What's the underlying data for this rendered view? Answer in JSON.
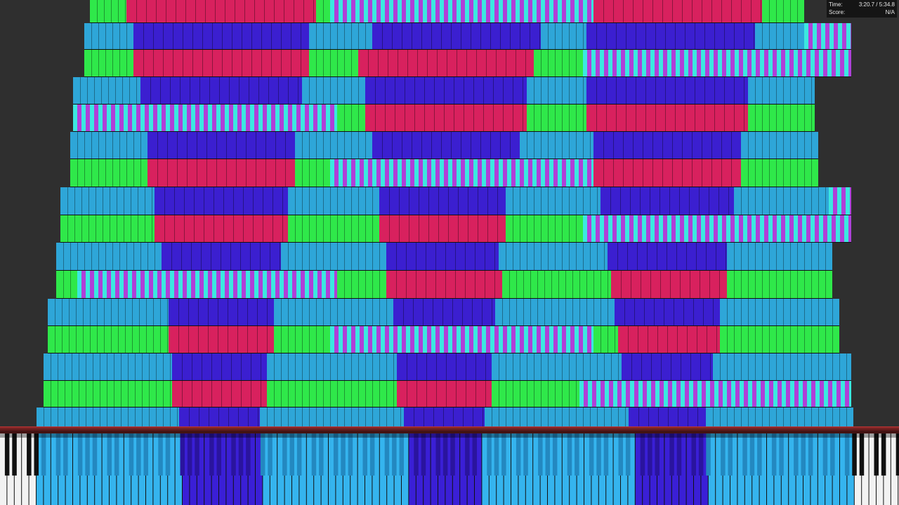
{
  "app": {
    "stats": {
      "time_label": "Time:",
      "time_value": "3:20.7 / 5:34.8",
      "score_label": "Score:",
      "score_value": "N/A"
    }
  },
  "colors": {
    "background": "#2f2f2f",
    "note_green": "#2fe84a",
    "note_red": "#d8215e",
    "note_blue": "#3b1fd0",
    "note_cyan": "#2ea6d8",
    "note_teal_stripe": "#3be8e0",
    "note_magenta_stripe": "#b03fd8",
    "key_highlight_cyan": "#35b4ee",
    "key_highlight_blue": "#3a1fd6",
    "divider_red": "#8e2a2a"
  },
  "icons": {
    "keyboard": "piano-keyboard",
    "notes": "falling-midi-notes"
  }
}
